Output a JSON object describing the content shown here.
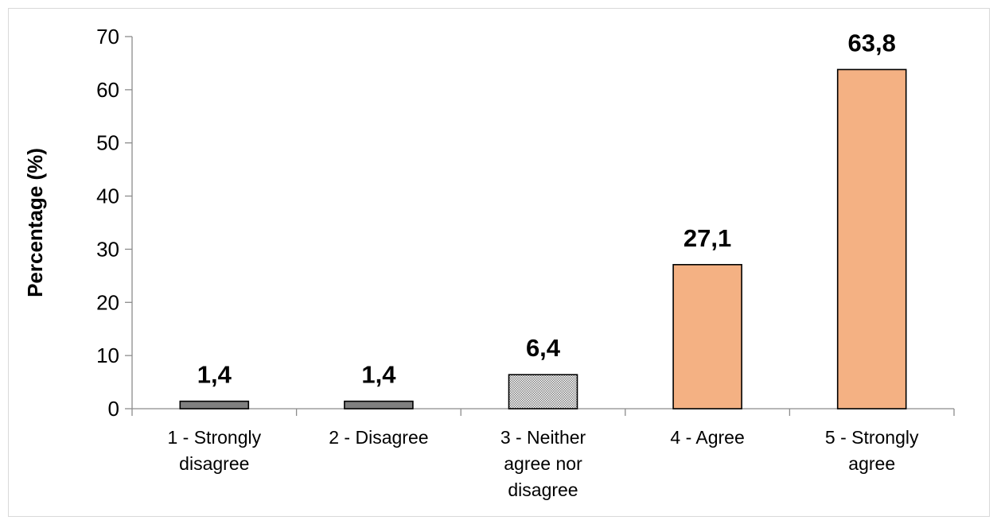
{
  "chart_data": {
    "type": "bar",
    "title": "",
    "xlabel": "",
    "ylabel": "Percentage (%)",
    "ylim": [
      0,
      70
    ],
    "yticks": [
      0,
      10,
      20,
      30,
      40,
      50,
      60,
      70
    ],
    "categories": [
      [
        "1 - Strongly",
        "disagree"
      ],
      [
        "2 - Disagree"
      ],
      [
        "3 - Neither",
        "agree nor",
        "disagree"
      ],
      [
        "4 - Agree"
      ],
      [
        "5 - Strongly",
        "agree"
      ]
    ],
    "values": [
      1.4,
      1.4,
      6.4,
      27.1,
      63.8
    ],
    "value_labels": [
      "1,4",
      "1,4",
      "6,4",
      "27,1",
      "63,8"
    ],
    "bar_styles": [
      "dark-gray",
      "dark-gray",
      "dotted-pattern",
      "orange",
      "orange"
    ],
    "colors": {
      "dark-gray": "#7f7f7f",
      "dotted-pattern": "#bfbfbf",
      "orange": "#f4b183",
      "bar-outline": "#000000",
      "axis": "#8c8c8c"
    },
    "grid": false,
    "legend": "none"
  }
}
